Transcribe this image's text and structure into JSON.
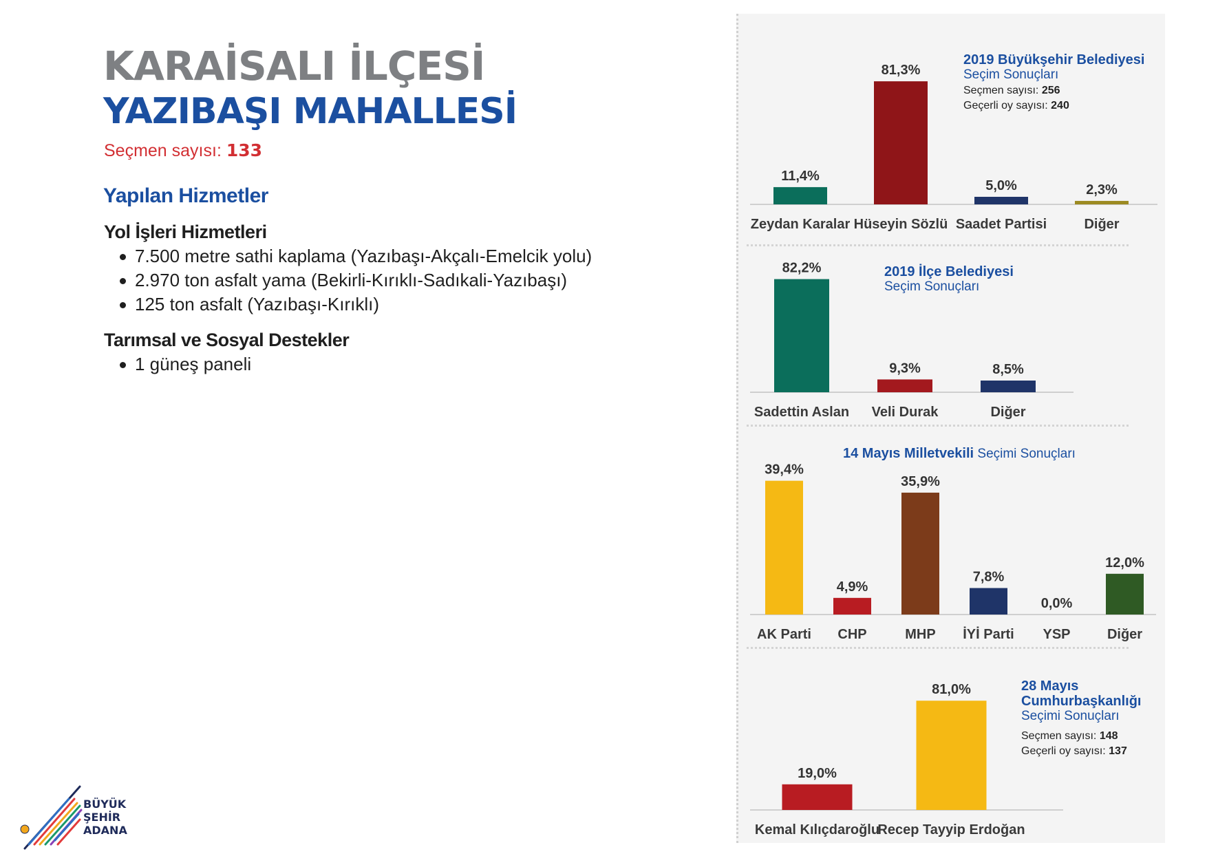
{
  "header": {
    "title_line1": "KARAİSALI İLÇESİ",
    "title_line2": "YAZIBAŞI MAHALLESİ",
    "voters_label": "Seçmen sayısı:",
    "voters_value": "133"
  },
  "services": {
    "title": "Yapılan Hizmetler",
    "sections": [
      {
        "title": "Yol İşleri Hizmetleri",
        "items": [
          "7.500 metre sathi kaplama (Yazıbaşı-Akçalı-Emelcik yolu)",
          "2.970 ton asfalt yama (Bekirli-Kırıklı-Sadıkali-Yazıbaşı)",
          "125 ton asfalt (Yazıbaşı-Kırıklı)"
        ]
      },
      {
        "title": "Tarımsal ve Sosyal Destekler",
        "items": [
          "1 güneş paneli"
        ]
      }
    ]
  },
  "logo": {
    "name": "buyuksehir-adana-logo",
    "line1": "BÜYÜK",
    "line2": "ŞEHİR",
    "line3": "ADANA"
  },
  "chart_data": [
    {
      "type": "bar",
      "title_line1": "2019 Büyükşehir Belediyesi",
      "title_line2": "Seçim Sonuçları",
      "voters_label": "Seçmen sayısı:",
      "voters_value": "256",
      "valid_label": "Geçerli oy sayısı:",
      "valid_value": "240",
      "categories": [
        "Zeydan Karalar",
        "Hüseyin Sözlü",
        "Saadet Partisi",
        "Diğer"
      ],
      "values": [
        11.4,
        81.3,
        5.0,
        2.3
      ],
      "value_labels": [
        "11,4%",
        "81,3%",
        "5,0%",
        "2,3%"
      ],
      "colors": [
        "#0b6e5b",
        "#8f1518",
        "#1f3468",
        "#9c8a22"
      ],
      "ylim": [
        0,
        100
      ]
    },
    {
      "type": "bar",
      "title_line1": "2019 İlçe Belediyesi",
      "title_line2": "Seçim Sonuçları",
      "categories": [
        "Sadettin Aslan",
        "Veli Durak",
        "Diğer"
      ],
      "values": [
        82.2,
        9.3,
        8.5
      ],
      "value_labels": [
        "82,2%",
        "9,3%",
        "8,5%"
      ],
      "colors": [
        "#0b6e5b",
        "#a3191e",
        "#1f3468"
      ],
      "ylim": [
        0,
        100
      ]
    },
    {
      "type": "bar",
      "title_bold": "14 Mayıs Milletvekili",
      "title_rest": "Seçimi Sonuçları",
      "categories": [
        "AK Parti",
        "CHP",
        "MHP",
        "İYİ Parti",
        "YSP",
        "Diğer"
      ],
      "values": [
        39.4,
        4.9,
        35.9,
        7.8,
        0.0,
        12.0
      ],
      "value_labels": [
        "39,4%",
        "4,9%",
        "35,9%",
        "7,8%",
        "0,0%",
        "12,0%"
      ],
      "colors": [
        "#f5b914",
        "#b81c22",
        "#7c3b1a",
        "#1f3468",
        "#7a3f2a",
        "#2f5a24"
      ],
      "ylim": [
        0,
        45
      ]
    },
    {
      "type": "bar",
      "title_line1": "28 Mayıs",
      "title_line2": "Cumhurbaşkanlığı",
      "title_line3": "Seçimi Sonuçları",
      "voters_label": "Seçmen sayısı:",
      "voters_value": "148",
      "valid_label": "Geçerli oy sayısı:",
      "valid_value": "137",
      "categories": [
        "Kemal Kılıçdaroğlu",
        "Recep Tayyip Erdoğan"
      ],
      "values": [
        19.0,
        81.0
      ],
      "value_labels": [
        "19,0%",
        "81,0%"
      ],
      "colors": [
        "#b81c22",
        "#f5b914"
      ],
      "ylim": [
        0,
        100
      ]
    }
  ]
}
